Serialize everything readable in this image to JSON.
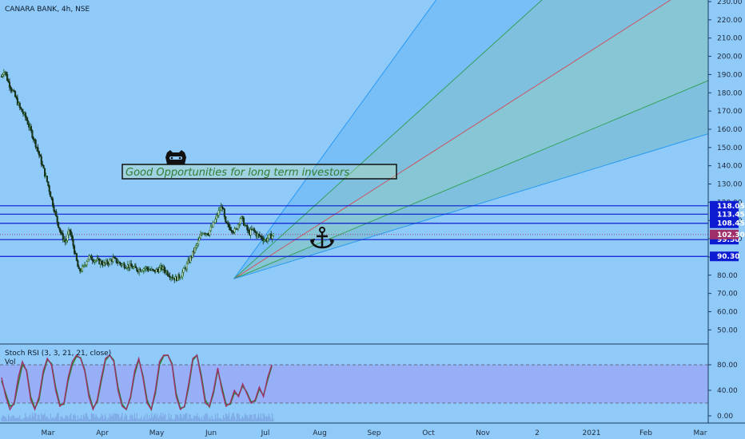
{
  "header": {
    "title": "CANARA BANK, 4h, NSE"
  },
  "annotation": {
    "text": "Good Opportunities for long term investors"
  },
  "indicator": {
    "label": "Stoch RSI (3, 3, 21, 21, close)",
    "vol_label": "Vol"
  },
  "chart_data": {
    "type": "candlestick",
    "symbol": "CANARA BANK",
    "interval": "4h",
    "exchange": "NSE",
    "price_axis": {
      "min": 40,
      "max": 230,
      "ticks": [
        "230.00",
        "220.00",
        "210.00",
        "200.00",
        "190.00",
        "180.00",
        "170.00",
        "160.00",
        "150.00",
        "140.00",
        "130.00",
        "120.00",
        "110.00",
        "100.00",
        "90.00",
        "80.00",
        "70.00",
        "60.00",
        "50.00"
      ]
    },
    "time_axis": {
      "labels": [
        "Mar",
        "Apr",
        "May",
        "Jun",
        "Jul",
        "Aug",
        "Sep",
        "Oct",
        "Nov",
        "2",
        "2021",
        "Feb",
        "Mar"
      ]
    },
    "price_path": [
      {
        "t": 0,
        "p": 189
      },
      {
        "t": 0.05,
        "p": 193
      },
      {
        "t": 0.12,
        "p": 186
      },
      {
        "t": 0.22,
        "p": 180
      },
      {
        "t": 0.33,
        "p": 172
      },
      {
        "t": 0.45,
        "p": 166
      },
      {
        "t": 0.55,
        "p": 158
      },
      {
        "t": 0.65,
        "p": 150
      },
      {
        "t": 0.75,
        "p": 140
      },
      {
        "t": 0.85,
        "p": 130
      },
      {
        "t": 0.95,
        "p": 118
      },
      {
        "t": 1.02,
        "p": 110
      },
      {
        "t": 1.1,
        "p": 102
      },
      {
        "t": 1.18,
        "p": 98
      },
      {
        "t": 1.25,
        "p": 105
      },
      {
        "t": 1.32,
        "p": 96
      },
      {
        "t": 1.42,
        "p": 82
      },
      {
        "t": 1.5,
        "p": 84
      },
      {
        "t": 1.6,
        "p": 90
      },
      {
        "t": 1.75,
        "p": 88
      },
      {
        "t": 1.9,
        "p": 86
      },
      {
        "t": 2.05,
        "p": 89
      },
      {
        "t": 2.2,
        "p": 86
      },
      {
        "t": 2.35,
        "p": 85
      },
      {
        "t": 2.5,
        "p": 83
      },
      {
        "t": 2.65,
        "p": 84
      },
      {
        "t": 2.8,
        "p": 82
      },
      {
        "t": 2.95,
        "p": 84
      },
      {
        "t": 3.1,
        "p": 80
      },
      {
        "t": 3.2,
        "p": 78
      },
      {
        "t": 3.3,
        "p": 80
      },
      {
        "t": 3.4,
        "p": 85
      },
      {
        "t": 3.5,
        "p": 91
      },
      {
        "t": 3.6,
        "p": 97
      },
      {
        "t": 3.7,
        "p": 104
      },
      {
        "t": 3.8,
        "p": 103
      },
      {
        "t": 3.9,
        "p": 108
      },
      {
        "t": 4.0,
        "p": 115
      },
      {
        "t": 4.06,
        "p": 118
      },
      {
        "t": 4.12,
        "p": 108
      },
      {
        "t": 4.2,
        "p": 106
      },
      {
        "t": 4.3,
        "p": 104
      },
      {
        "t": 4.4,
        "p": 112
      },
      {
        "t": 4.48,
        "p": 107
      },
      {
        "t": 4.55,
        "p": 103
      },
      {
        "t": 4.62,
        "p": 105
      },
      {
        "t": 4.7,
        "p": 102
      },
      {
        "t": 4.78,
        "p": 101
      },
      {
        "t": 4.85,
        "p": 99
      },
      {
        "t": 4.92,
        "p": 101
      },
      {
        "t": 5.0,
        "p": 102
      }
    ],
    "horizontal_levels": [
      {
        "value": 118.05,
        "label": "118.05"
      },
      {
        "value": 113.45,
        "label": "113.45"
      },
      {
        "value": 108.45,
        "label": "108.45"
      },
      {
        "value": 99.5,
        "label": "99.50"
      },
      {
        "value": 90.3,
        "label": "90.30"
      }
    ],
    "last_price": {
      "value": 102.3,
      "label": "102.30"
    },
    "stoch_rsi": {
      "axis_ticks": [
        "80.00",
        "40.00",
        "0.00"
      ],
      "upper_band": 80,
      "lower_band": 20,
      "k": [
        60,
        30,
        10,
        20,
        60,
        85,
        70,
        25,
        10,
        30,
        70,
        90,
        80,
        40,
        15,
        20,
        60,
        85,
        95,
        90,
        70,
        30,
        10,
        25,
        60,
        90,
        95,
        85,
        40,
        15,
        10,
        30,
        70,
        90,
        60,
        20,
        10,
        40,
        85,
        95,
        95,
        80,
        30,
        10,
        15,
        50,
        90,
        95,
        60,
        20,
        15,
        40,
        75,
        40,
        15,
        20,
        40,
        30,
        50,
        35,
        20,
        25,
        45,
        30,
        60,
        80
      ],
      "d": [
        55,
        35,
        15,
        18,
        50,
        80,
        72,
        30,
        12,
        25,
        65,
        88,
        82,
        45,
        18,
        18,
        55,
        80,
        93,
        91,
        72,
        35,
        12,
        22,
        55,
        87,
        95,
        87,
        45,
        18,
        10,
        28,
        65,
        88,
        63,
        25,
        10,
        35,
        80,
        94,
        95,
        82,
        35,
        12,
        14,
        45,
        87,
        95,
        65,
        25,
        14,
        36,
        72,
        45,
        18,
        18,
        36,
        32,
        47,
        37,
        22,
        23,
        42,
        32,
        56,
        78
      ]
    }
  }
}
